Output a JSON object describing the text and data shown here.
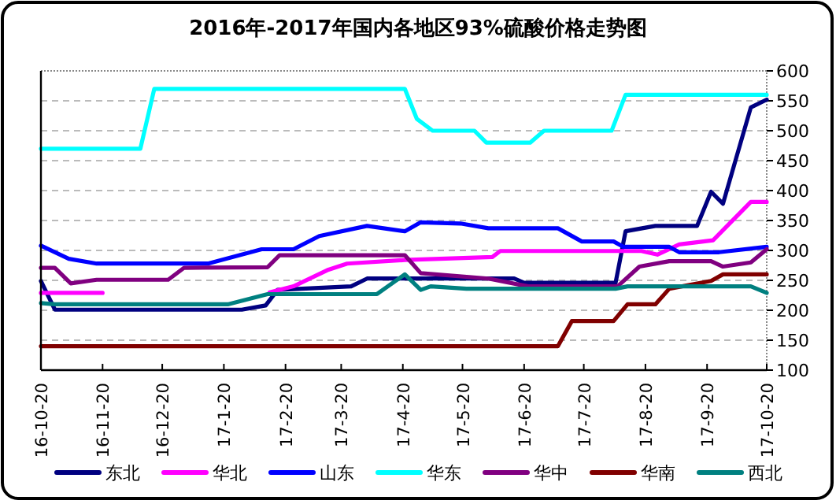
{
  "chart_data": {
    "type": "line",
    "title": "2016年-2017年国内各地区93%硫酸价格走势图",
    "xlim": [
      "2016-10-20",
      "2017-10-20"
    ],
    "ylim": [
      100,
      600
    ],
    "yticks": [
      100,
      150,
      200,
      250,
      300,
      350,
      400,
      450,
      500,
      550,
      600
    ],
    "xticks": [
      {
        "value": "2016-10-20",
        "label": "16-10-20"
      },
      {
        "value": "2016-11-20",
        "label": "16-11-20"
      },
      {
        "value": "2016-12-20",
        "label": "16-12-20"
      },
      {
        "value": "2017-01-20",
        "label": "17-1-20"
      },
      {
        "value": "2017-02-20",
        "label": "17-2-20"
      },
      {
        "value": "2017-03-20",
        "label": "17-3-20"
      },
      {
        "value": "2017-04-20",
        "label": "17-4-20"
      },
      {
        "value": "2017-05-20",
        "label": "17-5-20"
      },
      {
        "value": "2017-06-20",
        "label": "17-6-20"
      },
      {
        "value": "2017-07-20",
        "label": "17-7-20"
      },
      {
        "value": "2017-08-20",
        "label": "17-8-20"
      },
      {
        "value": "2017-09-20",
        "label": "17-9-20"
      },
      {
        "value": "2017-10-20",
        "label": "17-10-20"
      }
    ],
    "grid": "y",
    "legend": "bottom",
    "series": [
      {
        "name": "东北",
        "color": "#000080",
        "x": [
          "2016-10-20",
          "2016-10-27",
          "2017-01-29",
          "2017-02-10",
          "2017-02-16",
          "2017-03-25",
          "2017-04-02",
          "2017-06-15",
          "2017-06-20",
          "2017-08-05",
          "2017-08-10",
          "2017-08-25",
          "2017-09-15",
          "2017-09-22",
          "2017-09-28",
          "2017-10-12",
          "2017-10-20"
        ],
        "values": [
          249,
          201,
          201,
          208,
          234,
          240,
          253,
          253,
          246,
          246,
          332,
          341,
          341,
          398,
          378,
          539,
          552
        ]
      },
      {
        "name": "华北",
        "color": "#ff00ff",
        "x": [
          "2016-10-20",
          "2016-11-20",
          "2016-11-24",
          "2017-02-12",
          "2017-02-24",
          "2017-03-13",
          "2017-03-23",
          "2017-04-21",
          "2017-06-04",
          "2017-06-08",
          "2017-08-18",
          "2017-08-26",
          "2017-09-06",
          "2017-09-23",
          "2017-10-12",
          "2017-10-20"
        ],
        "values": [
          229,
          229,
          null,
          230,
          240,
          267,
          278,
          284,
          289,
          299,
          299,
          293,
          310,
          317,
          381,
          381
        ]
      },
      {
        "name": "山东",
        "color": "#0000ff",
        "x": [
          "2016-10-20",
          "2016-11-03",
          "2016-11-17",
          "2017-01-12",
          "2017-02-08",
          "2017-02-24",
          "2017-03-09",
          "2017-04-02",
          "2017-04-21",
          "2017-04-29",
          "2017-05-19",
          "2017-06-02",
          "2017-07-07",
          "2017-07-19",
          "2017-08-04",
          "2017-08-09",
          "2017-09-01",
          "2017-09-06",
          "2017-09-26",
          "2017-10-20"
        ],
        "values": [
          308,
          286,
          278,
          278,
          302,
          302,
          324,
          341,
          332,
          347,
          345,
          337,
          337,
          315,
          315,
          306,
          306,
          297,
          297,
          306
        ]
      },
      {
        "name": "华东",
        "color": "#00ffff",
        "x": [
          "2016-10-20",
          "2016-12-09",
          "2016-12-16",
          "2017-04-21",
          "2017-04-27",
          "2017-05-05",
          "2017-05-26",
          "2017-06-01",
          "2017-06-23",
          "2017-06-30",
          "2017-08-03",
          "2017-08-10",
          "2017-10-20"
        ],
        "values": [
          470,
          470,
          570,
          570,
          520,
          500,
          500,
          480,
          480,
          500,
          500,
          560,
          560
        ]
      },
      {
        "name": "华中",
        "color": "#800080",
        "x": [
          "2016-10-20",
          "2016-10-27",
          "2016-11-04",
          "2016-11-17",
          "2016-12-23",
          "2016-12-31",
          "2017-02-11",
          "2017-02-17",
          "2017-04-21",
          "2017-04-29",
          "2017-06-02",
          "2017-06-22",
          "2017-08-06",
          "2017-08-17",
          "2017-09-01",
          "2017-09-22",
          "2017-09-28",
          "2017-10-12",
          "2017-10-20"
        ],
        "values": [
          271,
          271,
          245,
          251,
          251,
          271,
          272,
          292,
          292,
          262,
          253,
          240,
          240,
          273,
          282,
          282,
          273,
          280,
          302
        ]
      },
      {
        "name": "华南",
        "color": "#800000",
        "x": [
          "2016-10-20",
          "2017-07-07",
          "2017-07-14",
          "2017-08-04",
          "2017-08-11",
          "2017-08-25",
          "2017-09-01",
          "2017-09-22",
          "2017-09-28",
          "2017-10-20"
        ],
        "values": [
          140,
          140,
          182,
          182,
          210,
          210,
          236,
          249,
          260,
          260
        ]
      },
      {
        "name": "西北",
        "color": "#008080",
        "x": [
          "2016-10-20",
          "2016-10-27",
          "2017-01-22",
          "2017-02-11",
          "2017-04-07",
          "2017-04-21",
          "2017-04-29",
          "2017-05-04",
          "2017-05-22",
          "2017-08-05",
          "2017-08-11",
          "2017-10-12",
          "2017-10-20"
        ],
        "values": [
          212,
          210,
          210,
          227,
          227,
          260,
          234,
          240,
          236,
          236,
          240,
          240,
          229
        ]
      }
    ]
  }
}
